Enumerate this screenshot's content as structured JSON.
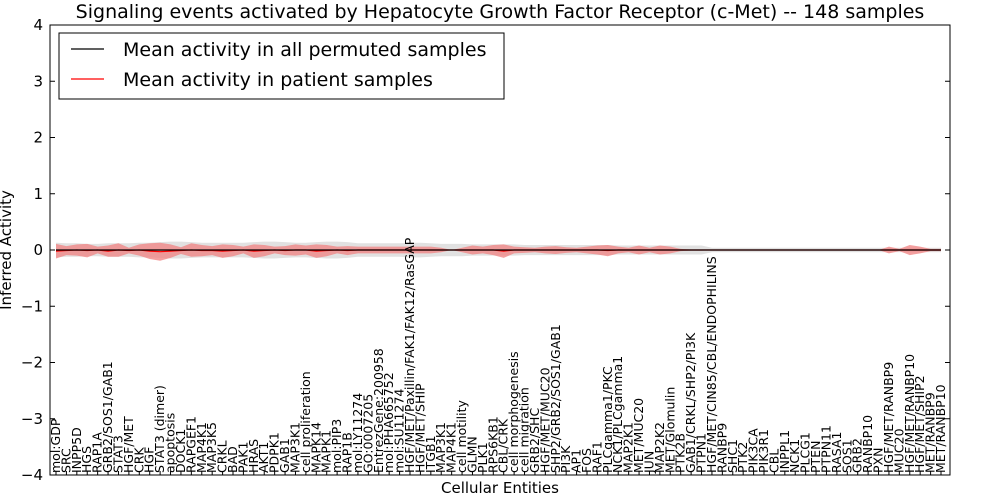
{
  "chart_data": {
    "type": "line",
    "title": "Signaling events activated by Hepatocyte Growth Factor Receptor (c-Met) -- 148 samples",
    "xlabel": "Cellular Entities",
    "ylabel": "Inferred Activity",
    "ylim": [
      -4,
      4
    ],
    "yticks": [
      -4,
      -3,
      -2,
      -1,
      0,
      1,
      2,
      3,
      4
    ],
    "ytick_labels": [
      "−4",
      "−3",
      "−2",
      "−1",
      "0",
      "1",
      "2",
      "3",
      "4"
    ],
    "legend": {
      "placement": "top-left",
      "entries": [
        {
          "label": "Mean activity in all permuted samples",
          "color": "#000000"
        },
        {
          "label": "Mean activity in patient samples",
          "color": "#ff0000"
        }
      ]
    },
    "categories": [
      "mol:GDP",
      "SRC",
      "INPP5D",
      "HGS",
      "RAP1A",
      "GRB2/SOS1/GAB1",
      "STAT3",
      "HGF/MET",
      "CRK",
      "HGF",
      "STAT3 (dimer)",
      "apoptosis",
      "DOCK1",
      "RAPGEF1",
      "MAP4K1",
      "MAP3K5",
      "CRKL",
      "BAD",
      "PAK1",
      "HRAS",
      "AKT1",
      "PDPK1",
      "GAB1",
      "MAP3K1",
      "cell proliferation",
      "MAPK14",
      "MAPK1",
      "mol:PIP3",
      "RAP1B",
      "mol:LY11274",
      "GO:0007205",
      "EntrezGene:200958",
      "mol:PHA665752",
      "mol:SU11274",
      "HGF/MET/Paxillin/FAK1/FAK12/RasGAP",
      "HGF/MET/SHIP",
      "ITGB1",
      "MAP3K1",
      "MAP4K1",
      "cell motility",
      "GLMN",
      "PLK1",
      "RPS6KB1",
      "CBL/CRK",
      "cell morphogenesis",
      "cell migration",
      "GRB2/SHC",
      "HGF/MET/MUC20",
      "SHP2/GRB2/SOS1/GAB1",
      "PI3K",
      "AP1",
      "FOS",
      "RAF1",
      "PLCgamma1/PKC",
      "NCK1/PLCgamma1",
      "MAP2K1",
      "MET/MUC20",
      "JUN",
      "MAP2K2",
      "MET/Glomulin",
      "PTK2B",
      "GAB1/CRKL/SHP2/PI3K",
      "PTPN1",
      "HGF/MET/CIN85/CBL/ENDOPHILINS",
      "RANBP9",
      "SHC1",
      "PTK2",
      "PIK3CA",
      "PIK3R1",
      "CBL",
      "INPPL1",
      "NCK1",
      "PLCG1",
      "PTEN",
      "PTPN11",
      "RASA1",
      "SOS1",
      "GRB2",
      "RANBP10",
      "PXN",
      "HGF/MET/RANBP9",
      "MUC20",
      "HGF/MET/RANBP10",
      "HGF/MET/SHIP2",
      "MET/RANBP9",
      "MET/RANBP10"
    ],
    "series": [
      {
        "name": "Mean activity in all permuted samples",
        "color": "#000000",
        "band_color": "#c8c8c8",
        "values": [
          0.0,
          0.0,
          0.0,
          0.0,
          0.0,
          0.0,
          0.0,
          0.0,
          0.0,
          0.0,
          0.0,
          0.0,
          0.0,
          0.0,
          0.0,
          0.0,
          0.0,
          0.0,
          0.0,
          0.0,
          0.0,
          0.0,
          0.0,
          0.0,
          0.0,
          0.0,
          0.0,
          0.0,
          0.0,
          0.0,
          0.0,
          0.0,
          0.0,
          0.0,
          0.0,
          0.0,
          0.0,
          0.0,
          0.0,
          0.0,
          0.0,
          0.0,
          0.0,
          0.0,
          0.0,
          0.0,
          0.0,
          0.0,
          0.0,
          0.0,
          0.0,
          0.0,
          0.0,
          0.0,
          0.0,
          0.0,
          0.0,
          0.0,
          0.0,
          0.0,
          0.0,
          0.0,
          0.0,
          0.0,
          0.0,
          0.0,
          0.0,
          0.0,
          0.0,
          0.0,
          0.0,
          0.0,
          0.0,
          0.0,
          0.0,
          0.0,
          0.0,
          0.0,
          0.0,
          0.0,
          0.0,
          0.0,
          0.0,
          0.0,
          0.0,
          0.0
        ],
        "spread": [
          0.13,
          0.12,
          0.12,
          0.11,
          0.11,
          0.12,
          0.12,
          0.12,
          0.13,
          0.13,
          0.14,
          0.15,
          0.15,
          0.14,
          0.13,
          0.13,
          0.13,
          0.13,
          0.13,
          0.14,
          0.15,
          0.15,
          0.14,
          0.13,
          0.13,
          0.14,
          0.15,
          0.15,
          0.14,
          0.12,
          0.12,
          0.12,
          0.12,
          0.12,
          0.13,
          0.13,
          0.12,
          0.11,
          0.11,
          0.11,
          0.1,
          0.1,
          0.1,
          0.1,
          0.1,
          0.09,
          0.09,
          0.09,
          0.09,
          0.09,
          0.09,
          0.09,
          0.09,
          0.09,
          0.08,
          0.08,
          0.08,
          0.08,
          0.08,
          0.08,
          0.08,
          0.08,
          0.08,
          0.04,
          0.04,
          0.04,
          0.04,
          0.04,
          0.04,
          0.04,
          0.04,
          0.04,
          0.04,
          0.04,
          0.04,
          0.04,
          0.04,
          0.04,
          0.04,
          0.04,
          0.04,
          0.04,
          0.04,
          0.04,
          0.04,
          0.04
        ]
      },
      {
        "name": "Mean activity in patient samples",
        "color": "#ff0000",
        "band_color": "#f08080",
        "values": [
          -0.02,
          -0.01,
          0.0,
          -0.01,
          0.0,
          -0.02,
          0.0,
          -0.01,
          0.0,
          -0.02,
          -0.03,
          -0.02,
          -0.01,
          0.0,
          -0.01,
          -0.01,
          -0.02,
          -0.01,
          0.0,
          -0.02,
          -0.01,
          0.0,
          -0.01,
          0.0,
          0.0,
          -0.02,
          -0.01,
          0.0,
          -0.01,
          0.0,
          0.0,
          0.0,
          0.0,
          0.0,
          0.0,
          0.0,
          0.0,
          0.0,
          0.0,
          0.0,
          0.0,
          0.0,
          0.0,
          -0.02,
          0.0,
          0.0,
          0.0,
          0.0,
          0.0,
          0.0,
          0.0,
          0.0,
          0.0,
          -0.01,
          0.0,
          0.0,
          0.0,
          0.0,
          0.0,
          0.0,
          0.0,
          0.0,
          0.0,
          0.0,
          0.0,
          0.0,
          0.0,
          0.0,
          0.0,
          0.0,
          0.0,
          0.0,
          0.0,
          0.0,
          0.0,
          0.0,
          0.0,
          0.0,
          0.0,
          0.0,
          0.0,
          0.0,
          0.0,
          0.0,
          0.0,
          0.0
        ],
        "spread": [
          0.13,
          0.08,
          0.1,
          0.12,
          0.06,
          0.1,
          0.12,
          0.05,
          0.1,
          0.14,
          0.16,
          0.12,
          0.06,
          0.12,
          0.1,
          0.08,
          0.12,
          0.1,
          0.06,
          0.12,
          0.1,
          0.06,
          0.08,
          0.1,
          0.08,
          0.12,
          0.1,
          0.06,
          0.08,
          0.06,
          0.06,
          0.06,
          0.06,
          0.06,
          0.06,
          0.06,
          0.06,
          0.04,
          0.0,
          0.04,
          0.08,
          0.06,
          0.09,
          0.12,
          0.06,
          0.05,
          0.04,
          0.06,
          0.07,
          0.05,
          0.04,
          0.06,
          0.08,
          0.1,
          0.06,
          0.04,
          0.08,
          0.04,
          0.08,
          0.06,
          0.02,
          0.01,
          0.01,
          0.0,
          0.0,
          0.0,
          0.0,
          0.0,
          0.0,
          0.0,
          0.0,
          0.0,
          0.0,
          0.0,
          0.0,
          0.0,
          0.0,
          0.0,
          0.0,
          0.0,
          0.06,
          0.02,
          0.09,
          0.06,
          0.02,
          0.02
        ]
      }
    ]
  }
}
